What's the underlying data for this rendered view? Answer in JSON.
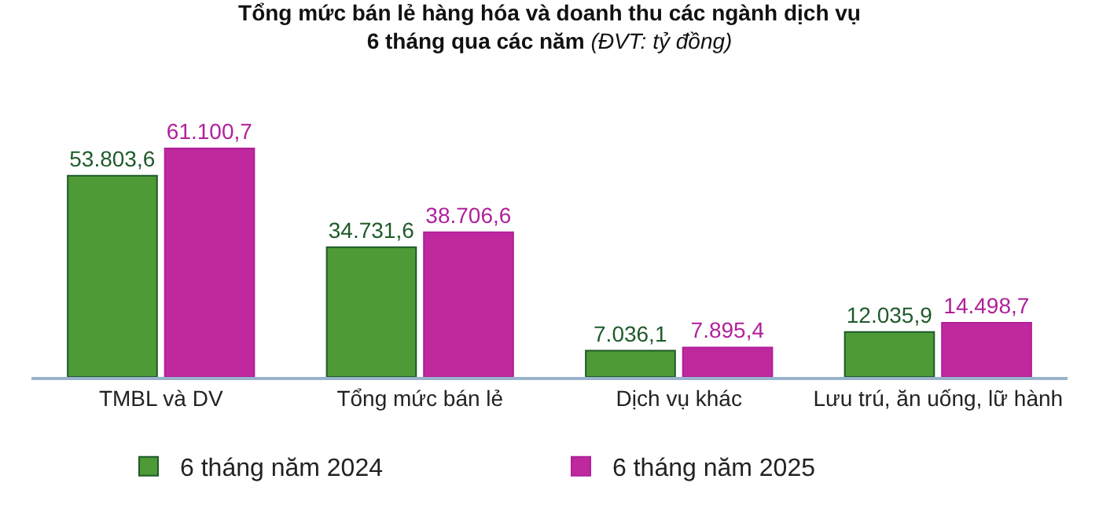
{
  "chart_data": {
    "type": "bar",
    "title": "Tổng mức bán lẻ hàng hóa và doanh thu các ngành dịch vụ",
    "subtitle": "6 tháng qua các năm",
    "annotations": [
      "(ĐVT: tỷ đồng)"
    ],
    "categories": [
      "TMBL và DV",
      "Tổng mức bán lẻ",
      "Dịch vụ khác",
      "Lưu trú, ăn uống, lữ hành"
    ],
    "series": [
      {
        "name": "6 tháng năm 2024",
        "color": "#4e9a36",
        "values": [
          53803.6,
          34731.6,
          7036.1,
          12035.9
        ],
        "value_labels": [
          "53.803,6",
          "34.731,6",
          "7.036,1",
          "12.035,9"
        ]
      },
      {
        "name": "6 tháng năm 2025",
        "color": "#c0289e",
        "values": [
          61100.7,
          38706.6,
          7895.4,
          14498.7
        ],
        "value_labels": [
          "61.100,7",
          "38.706,6",
          "7.895,4",
          "14.498,7"
        ]
      }
    ],
    "legend": "bottom"
  }
}
